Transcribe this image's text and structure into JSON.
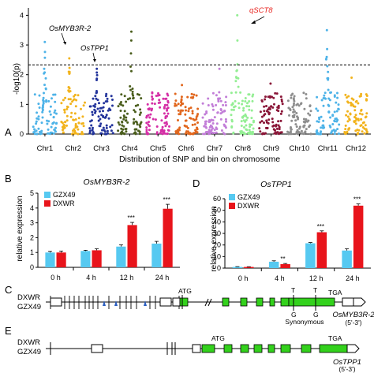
{
  "panels": {
    "A": {
      "letter": "A",
      "ylabel": "-log10(p)",
      "xlabel": "Distribution of SNP and bin on chromosome",
      "yticks": [
        "0",
        "1",
        "2",
        "3",
        "4"
      ],
      "threshold": 2.33,
      "chromosomes": [
        {
          "label": "Chr1",
          "color": "#4eb3e8",
          "peak": 3.1
        },
        {
          "label": "Chr2",
          "color": "#f2b31c",
          "peak": 2.55
        },
        {
          "label": "Chr3",
          "color": "#23349b",
          "peak": 2.2
        },
        {
          "label": "Chr4",
          "color": "#4b5e1d",
          "peak": 3.45
        },
        {
          "label": "Chr5",
          "color": "#d52fa6",
          "peak": 1.4
        },
        {
          "label": "Chr6",
          "color": "#e1671e",
          "peak": 1.65
        },
        {
          "label": "Chr7",
          "color": "#c27ed8",
          "peak": 2.2
        },
        {
          "label": "Chr8",
          "color": "#93ee93",
          "peak": 4.0
        },
        {
          "label": "Chr9",
          "color": "#8a1638",
          "peak": 1.7
        },
        {
          "label": "Chr10",
          "color": "#8e8e8e",
          "peak": 1.2
        },
        {
          "label": "Chr11",
          "color": "#4eb3e8",
          "peak": 3.5
        },
        {
          "label": "Chr12",
          "color": "#f2b31c",
          "peak": 1.9
        }
      ],
      "annotations": [
        {
          "label": "OsMYB3R-2",
          "color": "#000000"
        },
        {
          "label": "OsTPP1",
          "color": "#000000"
        },
        {
          "label": "qSCT8",
          "color": "#e8241f"
        }
      ]
    },
    "B": {
      "letter": "B",
      "title": "OsMYB3R-2",
      "ylabel": "relative expression",
      "yticks": [
        "0",
        "1",
        "2",
        "3",
        "4",
        "5"
      ],
      "chart_data": {
        "type": "bar",
        "categories": [
          "0 h",
          "4 h",
          "12 h",
          "24 h"
        ],
        "ylabel": "relative expression",
        "ylim": [
          0,
          5
        ],
        "series": [
          {
            "name": "GZX49",
            "color": "#56c9f1",
            "values": [
              1.0,
              1.1,
              1.4,
              1.6
            ],
            "errors": [
              0.08,
              0.05,
              0.12,
              0.15
            ]
          },
          {
            "name": "DXWR",
            "color": "#e8141b",
            "values": [
              1.0,
              1.15,
              2.85,
              3.95
            ],
            "errors": [
              0.1,
              0.1,
              0.18,
              0.3
            ]
          }
        ],
        "significance": [
          "",
          "",
          "***",
          "***"
        ]
      }
    },
    "D": {
      "letter": "D",
      "title": "OsTPP1",
      "ylabel": "relative expression",
      "yticks": [
        "0",
        "10",
        "20",
        "30",
        "40",
        "50",
        "60"
      ],
      "chart_data": {
        "type": "bar",
        "categories": [
          "0 h",
          "4 h",
          "12 h",
          "24 h"
        ],
        "ylabel": "relative expression",
        "ylim": [
          0,
          60
        ],
        "series": [
          {
            "name": "GZX49",
            "color": "#56c9f1",
            "values": [
              1.0,
              5.5,
              21.5,
              15.2
            ],
            "errors": [
              0.3,
              0.8,
              0.6,
              1.5
            ]
          },
          {
            "name": "DXWR",
            "color": "#e8141b",
            "values": [
              1.0,
              3.5,
              31.0,
              54.0
            ],
            "errors": [
              0.2,
              0.5,
              1.2,
              1.5
            ]
          }
        ],
        "significance": [
          "",
          "**",
          "***",
          "***"
        ]
      }
    },
    "C": {
      "letter": "C",
      "row1": "DXWR",
      "row2": "GZX49",
      "start": "ATG",
      "stop": "TGA",
      "snp_top_1": "T",
      "snp_top_2": "T",
      "snp_bottom_1": "G",
      "snp_bottom_2": "G",
      "note": "Synonymous",
      "gene": "OsMYB3R-2",
      "orientation": "(5'-3')"
    },
    "E": {
      "letter": "E",
      "row1": "DXWR",
      "row2": "GZX49",
      "start": "ATG",
      "stop": "TGA",
      "gene": "OsTPP1",
      "orientation": "(5'-3')"
    }
  }
}
